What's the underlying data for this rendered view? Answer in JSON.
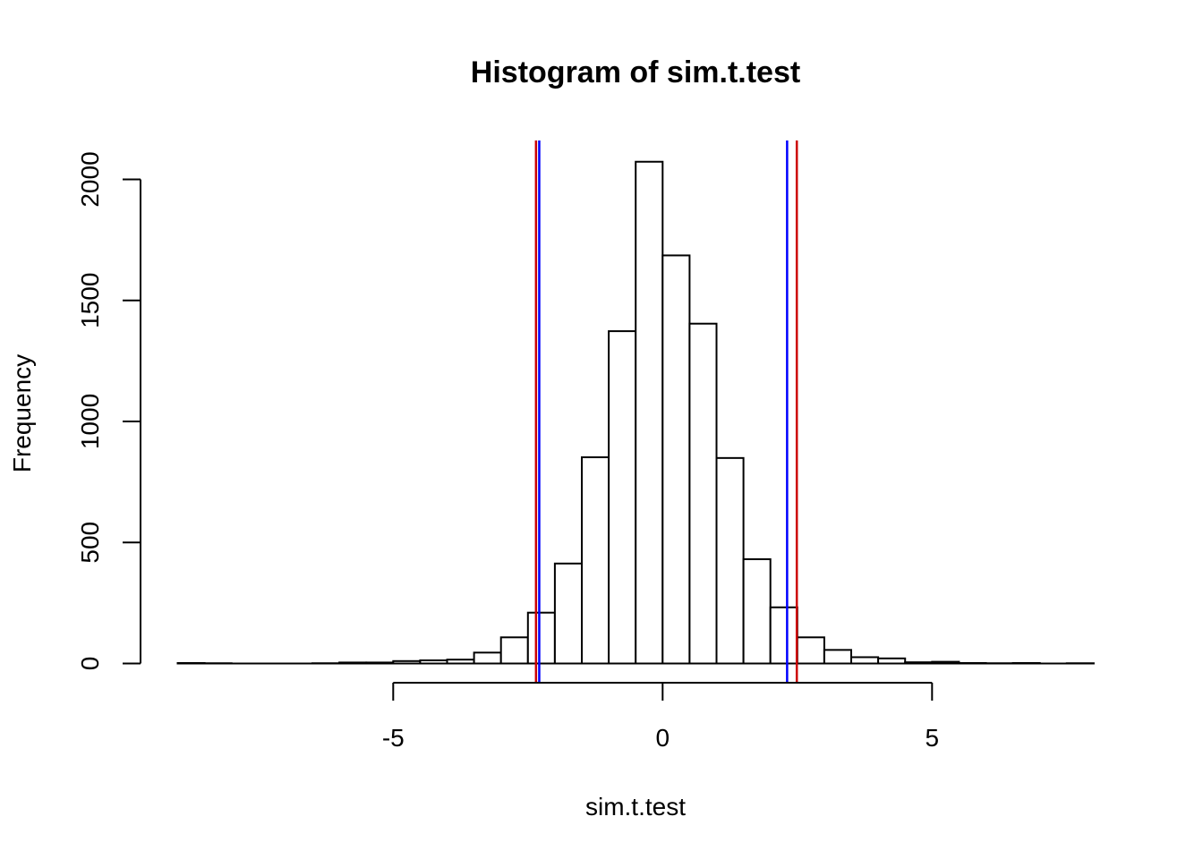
{
  "chart_data": {
    "type": "histogram",
    "title": "Histogram of sim.t.test",
    "xlabel": "sim.t.test",
    "ylabel": "Frequency",
    "bin_width": 0.5,
    "bins": [
      {
        "x0": -9.0,
        "x1": -8.5,
        "count": 2
      },
      {
        "x0": -8.5,
        "x1": -8.0,
        "count": 1
      },
      {
        "x0": -8.0,
        "x1": -7.5,
        "count": 0
      },
      {
        "x0": -7.5,
        "x1": -7.0,
        "count": 0
      },
      {
        "x0": -7.0,
        "x1": -6.5,
        "count": 0
      },
      {
        "x0": -6.5,
        "x1": -6.0,
        "count": 1
      },
      {
        "x0": -6.0,
        "x1": -5.5,
        "count": 4
      },
      {
        "x0": -5.5,
        "x1": -5.0,
        "count": 4
      },
      {
        "x0": -5.0,
        "x1": -4.5,
        "count": 10
      },
      {
        "x0": -4.5,
        "x1": -4.0,
        "count": 13
      },
      {
        "x0": -4.0,
        "x1": -3.5,
        "count": 16
      },
      {
        "x0": -3.5,
        "x1": -3.0,
        "count": 45
      },
      {
        "x0": -3.0,
        "x1": -2.5,
        "count": 108
      },
      {
        "x0": -2.5,
        "x1": -2.0,
        "count": 210
      },
      {
        "x0": -2.0,
        "x1": -1.5,
        "count": 413
      },
      {
        "x0": -1.5,
        "x1": -1.0,
        "count": 852
      },
      {
        "x0": -1.0,
        "x1": -0.5,
        "count": 1373
      },
      {
        "x0": -0.5,
        "x1": 0.0,
        "count": 2073
      },
      {
        "x0": 0.0,
        "x1": 0.5,
        "count": 1686
      },
      {
        "x0": 0.5,
        "x1": 1.0,
        "count": 1404
      },
      {
        "x0": 1.0,
        "x1": 1.5,
        "count": 849
      },
      {
        "x0": 1.5,
        "x1": 2.0,
        "count": 431
      },
      {
        "x0": 2.0,
        "x1": 2.5,
        "count": 232
      },
      {
        "x0": 2.5,
        "x1": 3.0,
        "count": 108
      },
      {
        "x0": 3.0,
        "x1": 3.5,
        "count": 56
      },
      {
        "x0": 3.5,
        "x1": 4.0,
        "count": 26
      },
      {
        "x0": 4.0,
        "x1": 4.5,
        "count": 21
      },
      {
        "x0": 4.5,
        "x1": 5.0,
        "count": 5
      },
      {
        "x0": 5.0,
        "x1": 5.5,
        "count": 7
      },
      {
        "x0": 5.5,
        "x1": 6.0,
        "count": 2
      },
      {
        "x0": 6.0,
        "x1": 6.5,
        "count": 1
      },
      {
        "x0": 6.5,
        "x1": 7.0,
        "count": 2
      },
      {
        "x0": 7.0,
        "x1": 7.5,
        "count": 0
      },
      {
        "x0": 7.5,
        "x1": 8.0,
        "count": 1
      }
    ],
    "xlim": [
      -9.7,
      8.3
    ],
    "ylim": [
      0,
      2150
    ],
    "xticks": [
      -5,
      0,
      5
    ],
    "xtick_labels": [
      "-5",
      "0",
      "5"
    ],
    "yticks": [
      0,
      500,
      1000,
      1500,
      2000
    ],
    "ytick_labels": [
      "0",
      "500",
      "1000",
      "1500",
      "2000"
    ],
    "reference_lines": [
      {
        "x": -2.35,
        "color": "#cc0000"
      },
      {
        "x": -2.29,
        "color": "#0000ff"
      },
      {
        "x": 2.31,
        "color": "#0000ff"
      },
      {
        "x": 2.49,
        "color": "#cc0000"
      }
    ],
    "grid": false,
    "legend": "none"
  },
  "colors": {
    "bar_fill": "#ffffff",
    "bar_stroke": "#000000",
    "red_line": "#cc0000",
    "blue_line": "#0000ff"
  }
}
